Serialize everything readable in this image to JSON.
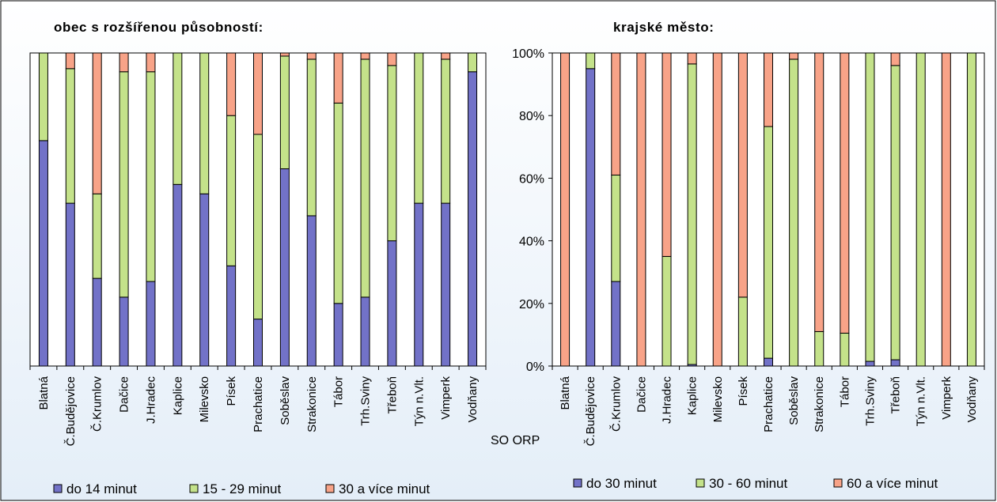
{
  "colors": {
    "low": "#7272C8",
    "mid": "#C4E28A",
    "high": "#F8A388",
    "background_top": "#ffffff",
    "background_bottom": "#e4eef8"
  },
  "chart_data": [
    {
      "type": "bar",
      "stacked": true,
      "title": "obec s rozšířenou působností:",
      "categories": [
        "Blatná",
        "Č.Budějovice",
        "Č.Krumlov",
        "Dačice",
        "J.Hradec",
        "Kaplice",
        "Milevsko",
        "Písek",
        "Prachatice",
        "Soběslav",
        "Strakonice",
        "Tábor",
        "Trh.Sviny",
        "Třeboň",
        "Týn n.Vlt.",
        "Vimperk",
        "Vodňany"
      ],
      "series": [
        {
          "name": "do 14 minut",
          "values": [
            72,
            52,
            28,
            22,
            27,
            58,
            55,
            32,
            15,
            63,
            48,
            20,
            22,
            40,
            52,
            52,
            94
          ]
        },
        {
          "name": "15 - 29 minut",
          "values": [
            28,
            43,
            27,
            72,
            67,
            42,
            45,
            48,
            59,
            36,
            50,
            64,
            76,
            56,
            48,
            46,
            6
          ]
        },
        {
          "name": "30 a více minut",
          "values": [
            0,
            5,
            45,
            6,
            6,
            0,
            0,
            20,
            26,
            1,
            2,
            16,
            2,
            4,
            0,
            2,
            0
          ]
        }
      ],
      "ylim": [
        0,
        100
      ],
      "yticks": [],
      "legend": "bottom"
    },
    {
      "type": "bar",
      "stacked": true,
      "title": "krajské město:",
      "xlabel": "SO ORP",
      "categories": [
        "Blatná",
        "Č.Budějovice",
        "Č.Krumlov",
        "Dačice",
        "J.Hradec",
        "Kaplice",
        "Milevsko",
        "Písek",
        "Prachatice",
        "Soběslav",
        "Strakonice",
        "Tábor",
        "Trh.Sviny",
        "Třeboň",
        "Týn n.Vlt.",
        "Vimperk",
        "Vodňany"
      ],
      "series": [
        {
          "name": "do 30 minut",
          "values": [
            0,
            95,
            27,
            0,
            0,
            0.5,
            0,
            0,
            2.5,
            0,
            0,
            0,
            1.5,
            2,
            0,
            0,
            0
          ]
        },
        {
          "name": "30 - 60 minut",
          "values": [
            0,
            5,
            34,
            0,
            35,
            96,
            0,
            22,
            74,
            98,
            11,
            10.5,
            98.5,
            94,
            100,
            0,
            100
          ]
        },
        {
          "name": "60 a více minut",
          "values": [
            100,
            0,
            39,
            100,
            65,
            3.5,
            100,
            78,
            23.5,
            2,
            89,
            89.5,
            0,
            4,
            0,
            100,
            0
          ]
        }
      ],
      "ylim": [
        0,
        100
      ],
      "yticks": [
        "0%",
        "20%",
        "40%",
        "60%",
        "80%",
        "100%"
      ],
      "legend": "bottom"
    }
  ]
}
